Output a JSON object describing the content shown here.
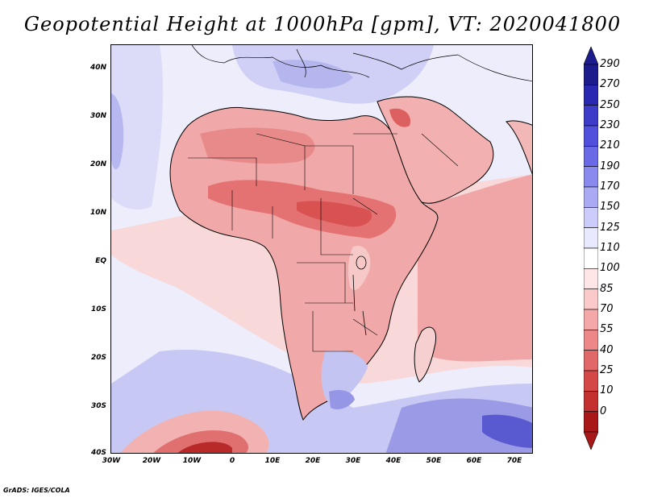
{
  "title": "Geopotential Height at 1000hPa [gpm], VT: 2020041800",
  "credit": "GrADS: IGES/COLA",
  "lat_labels": [
    "40N",
    "30N",
    "20N",
    "10N",
    "EQ",
    "10S",
    "20S",
    "30S",
    "40S"
  ],
  "lon_labels": [
    "30W",
    "20W",
    "10W",
    "0",
    "10E",
    "20E",
    "30E",
    "40E",
    "50E",
    "60E",
    "70E"
  ],
  "colorbar": {
    "levels": [
      "290",
      "270",
      "250",
      "230",
      "210",
      "190",
      "170",
      "150",
      "125",
      "110",
      "100",
      "85",
      "70",
      "55",
      "40",
      "25",
      "10",
      "0"
    ],
    "colors": [
      "#1c1c8c",
      "#2828b0",
      "#3c3cc8",
      "#5050dc",
      "#6a6ae6",
      "#8a8aee",
      "#aaaaf4",
      "#ccccfa",
      "#e8e8ff",
      "#ffffff",
      "#ffe6e6",
      "#facaca",
      "#f4a8a8",
      "#ec8888",
      "#e06868",
      "#d44848",
      "#c43030",
      "#a81818"
    ]
  },
  "map": {
    "region": "Africa, 30W-75E, 40S-45N",
    "ocean_color": "#e6e6fa",
    "land_base_color": "#f0a0a0",
    "hot_color": "#dc5050",
    "cold_color": "#6464d2"
  }
}
